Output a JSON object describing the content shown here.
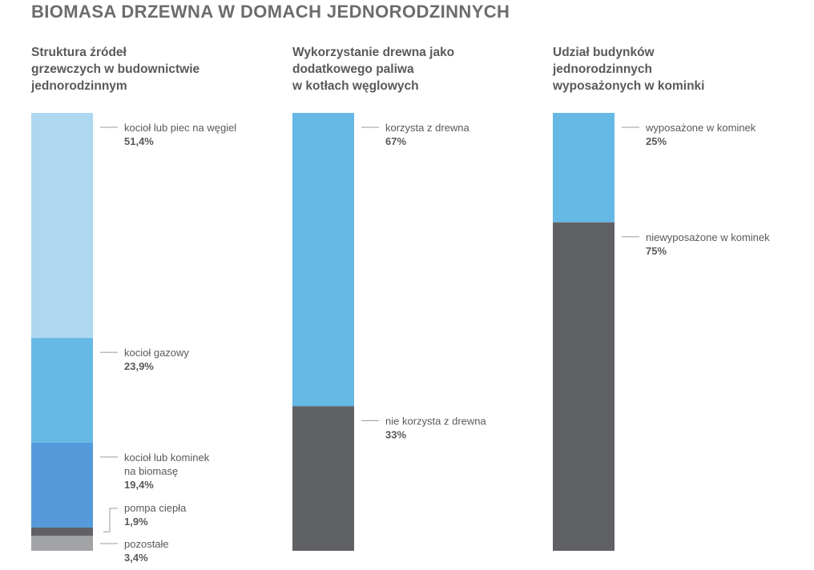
{
  "page_title": "BIOMASA DRZEWNA W DOMACH JEDNORODZINNYCH",
  "chart_data": [
    {
      "type": "bar",
      "stacked": true,
      "title": "Struktura źródeł\ngrzewczych w budownictwie\njednorodzinnym",
      "unit": "%",
      "segments": [
        {
          "label": "kocioł lub piec na węgiel",
          "value": 51.4,
          "value_label": "51,4%",
          "color": "#add8f0"
        },
        {
          "label": "kocioł gazowy",
          "value": 23.9,
          "value_label": "23,9%",
          "color": "#66b8e5"
        },
        {
          "label": "kocioł lub kominek\nna biomasę",
          "value": 19.4,
          "value_label": "19,4%",
          "color": "#559bdb"
        },
        {
          "label": "pompa ciepła",
          "value": 1.9,
          "value_label": "1,9%",
          "color": "#606164"
        },
        {
          "label": "pozostałe",
          "value": 3.4,
          "value_label": "3,4%",
          "color": "#a2a3a5"
        }
      ]
    },
    {
      "type": "bar",
      "stacked": true,
      "title": "Wykorzystanie drewna jako\ndodatkowego paliwa\nw kotłach węglowych",
      "unit": "%",
      "segments": [
        {
          "label": "korzysta z drewna",
          "value": 67,
          "value_label": "67%",
          "color": "#66b8e5"
        },
        {
          "label": "nie korzysta z drewna",
          "value": 33,
          "value_label": "33%",
          "color": "#606164"
        }
      ]
    },
    {
      "type": "bar",
      "stacked": true,
      "title": "Udział budynków\njednorodzinnych\nwyposażonych w kominki",
      "unit": "%",
      "segments": [
        {
          "label": "wyposażone w kominek",
          "value": 25,
          "value_label": "25%",
          "color": "#66b8e5"
        },
        {
          "label": "niewyposażone w kominek",
          "value": 75,
          "value_label": "75%",
          "color": "#606164"
        }
      ]
    }
  ]
}
